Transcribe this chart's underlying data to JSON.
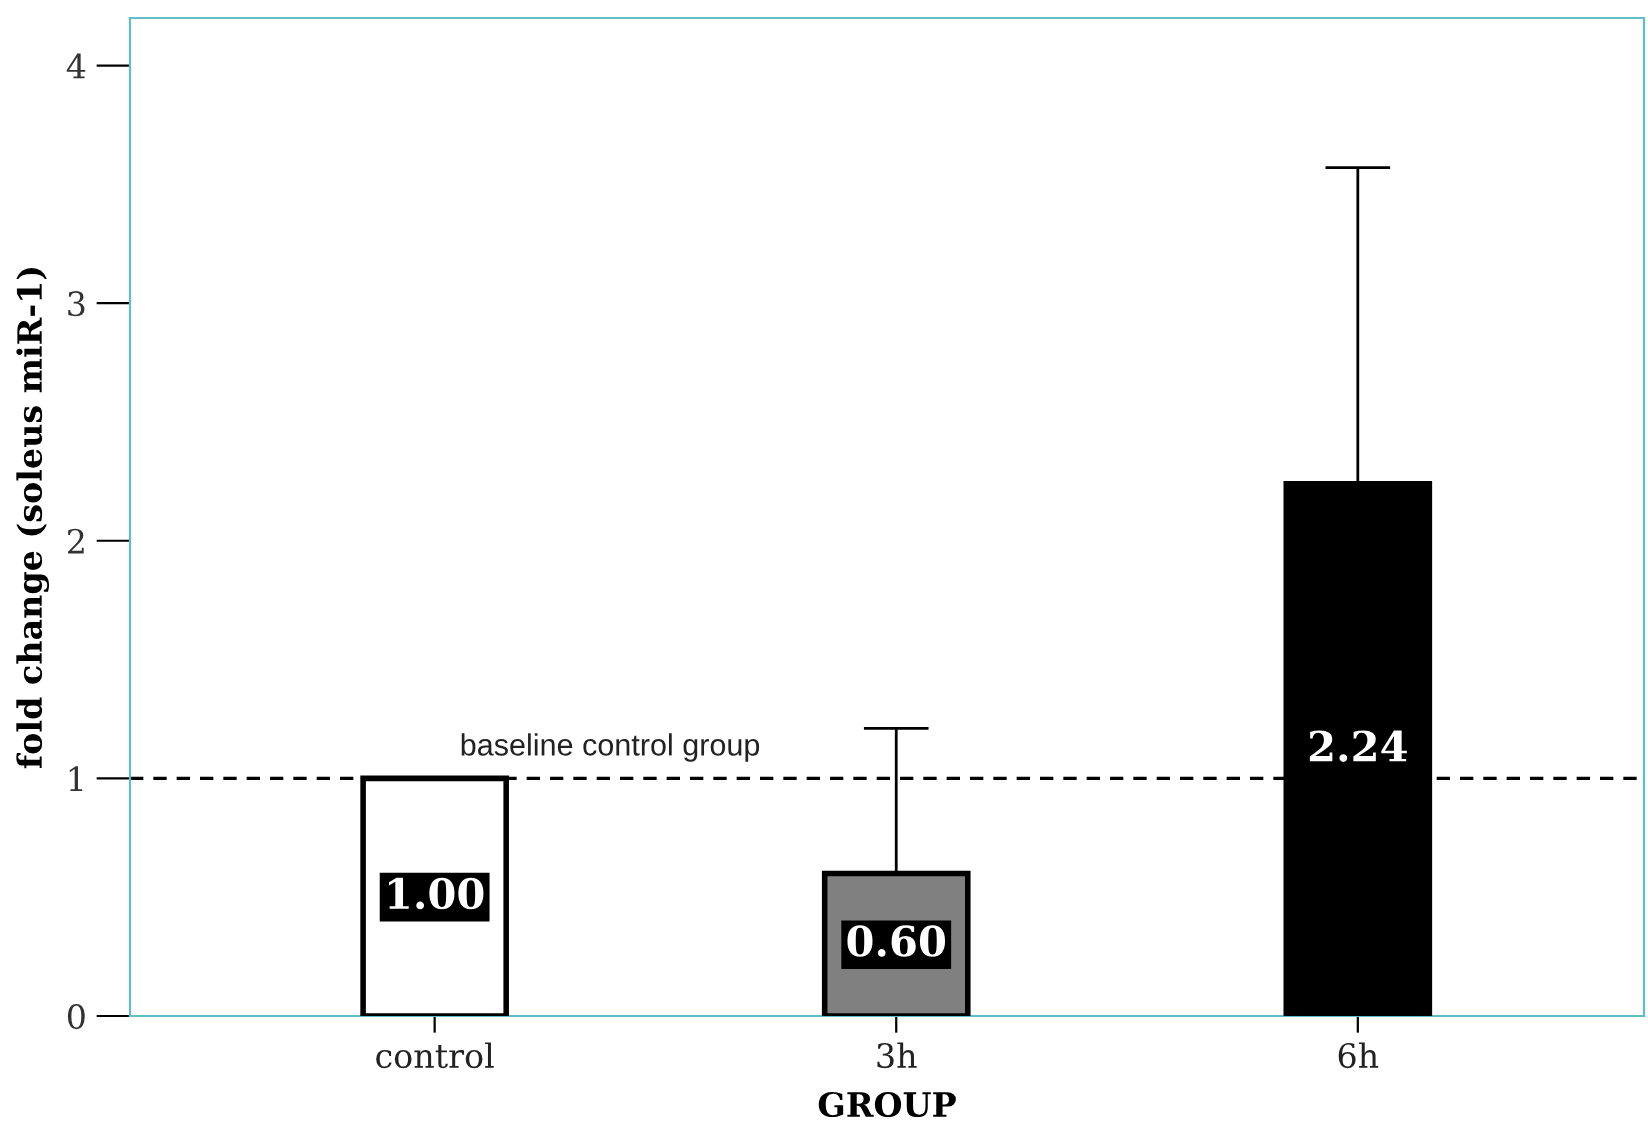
{
  "chart_data": {
    "type": "bar",
    "xlabel": "GROUP",
    "ylabel": "fold change (soleus miR-1)",
    "categories": [
      "control",
      "3h",
      "6h"
    ],
    "values": [
      1.0,
      0.6,
      2.24
    ],
    "colors": [
      "#ffffff",
      "#808080",
      "#000000"
    ],
    "errors": [
      null,
      [
        0.6,
        1.21
      ],
      [
        2.24,
        3.57
      ]
    ],
    "value_labels": [
      "1.00",
      "0.60",
      "2.24"
    ],
    "ylim": [
      0,
      4.2
    ],
    "yticks": [
      0,
      1,
      2,
      3,
      4
    ],
    "grid": false,
    "ref_lines": [
      {
        "axis": "y",
        "value": 1,
        "label": "baseline control group",
        "color": "#000000",
        "line_style": "dashed"
      }
    ]
  }
}
